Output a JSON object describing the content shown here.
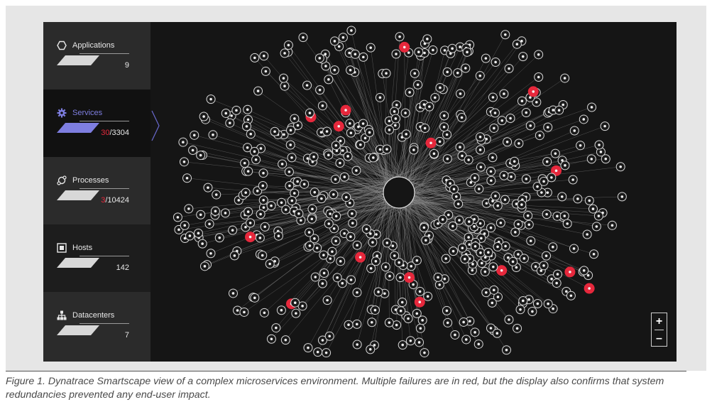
{
  "sidebar": {
    "items": [
      {
        "label": "Applications",
        "count": "9",
        "count_error": "",
        "icon": "hexagon-icon",
        "active": false
      },
      {
        "label": "Services",
        "count": "/3304",
        "count_error": "30",
        "icon": "gear-icon",
        "active": true
      },
      {
        "label": "Processes",
        "count": "/10424",
        "count_error": "3",
        "icon": "processes-icon",
        "active": false
      },
      {
        "label": "Hosts",
        "count": "142",
        "count_error": "",
        "icon": "host-icon",
        "active": false
      },
      {
        "label": "Datacenters",
        "count": "7",
        "count_error": "",
        "icon": "datacenter-icon",
        "active": false
      }
    ]
  },
  "zoom": {
    "in_label": "+",
    "out_label": "–"
  },
  "caption": "Figure 1. Dynatrace Smartscape view of a complex microservices environment. Multiple failures are in red, but the display also confirms that system redundancies prevented any end-user impact.",
  "colors": {
    "background": "#151515",
    "sidebar": "#2b2b2b",
    "active": "#111111",
    "accent": "#7e7ee0",
    "error": "#e6283c",
    "node": "#d9d9d9"
  }
}
